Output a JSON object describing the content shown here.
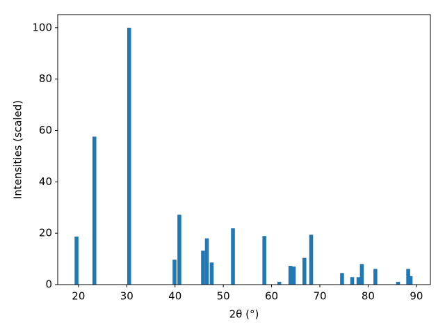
{
  "chart_data": {
    "type": "bar",
    "x_label": "2θ (°)",
    "y_label": "Intensities (scaled)",
    "x": [
      19.6,
      23.3,
      30.5,
      39.9,
      40.9,
      45.8,
      46.6,
      47.6,
      52.0,
      58.5,
      61.6,
      63.9,
      64.6,
      66.8,
      68.2,
      74.6,
      76.7,
      78.0,
      78.7,
      81.5,
      86.2,
      88.3,
      88.8
    ],
    "values": [
      18.7,
      57.6,
      100,
      9.7,
      27.2,
      13.2,
      18.0,
      8.6,
      21.9,
      18.9,
      1.1,
      7.3,
      7.0,
      10.4,
      19.4,
      4.5,
      2.9,
      2.9,
      8.0,
      6.1,
      1.1,
      6.1,
      3.3
    ],
    "color": "#1f77b4",
    "xlim": [
      15.7,
      92.9
    ],
    "xticks": [
      20,
      30,
      40,
      50,
      60,
      70,
      80,
      90
    ],
    "ylim": [
      0,
      105.1
    ],
    "yticks": [
      0,
      20,
      40,
      60,
      80,
      100
    ],
    "grid": false
  }
}
